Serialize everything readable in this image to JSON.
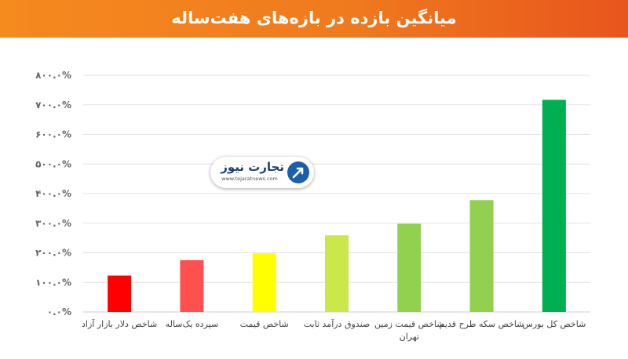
{
  "title": "میانگین بازده در بازه‌های هفت‌ساله",
  "watermark": {
    "name": "تجارت نیوز",
    "url": "www.tejaratnews.com",
    "icon": "tejaratnews-logo-icon"
  },
  "chart_data": {
    "type": "bar",
    "title": "میانگین بازده در بازه‌های هفت‌ساله",
    "xlabel": "",
    "ylabel": "",
    "ylim": [
      0,
      800
    ],
    "yticks": [
      0,
      100,
      200,
      300,
      400,
      500,
      600,
      700,
      800
    ],
    "ytick_labels": [
      "۰.۰%",
      "۱۰۰.۰%",
      "۲۰۰.۰%",
      "۳۰۰.۰%",
      "۴۰۰.۰%",
      "۵۰۰.۰%",
      "۶۰۰.۰%",
      "۷۰۰.۰%",
      "۸۰۰.۰%"
    ],
    "grid": true,
    "categories": [
      [
        "شاخص دلار بازار آزاد"
      ],
      [
        "سپرده یک‌ساله"
      ],
      [
        "شاخص قیمت"
      ],
      [
        "صندوق درآمد ثابت"
      ],
      [
        "شاخص قیمت زمین",
        "تهران"
      ],
      [
        "شاخص سکه طرح قدیم"
      ],
      [
        "شاخص کل بورس"
      ]
    ],
    "values": [
      123,
      175,
      198,
      259,
      298,
      378,
      717
    ],
    "colors": [
      "#ff0000",
      "#ff5050",
      "#ffff00",
      "#cbe84a",
      "#92d050",
      "#92d050",
      "#00b050"
    ]
  }
}
